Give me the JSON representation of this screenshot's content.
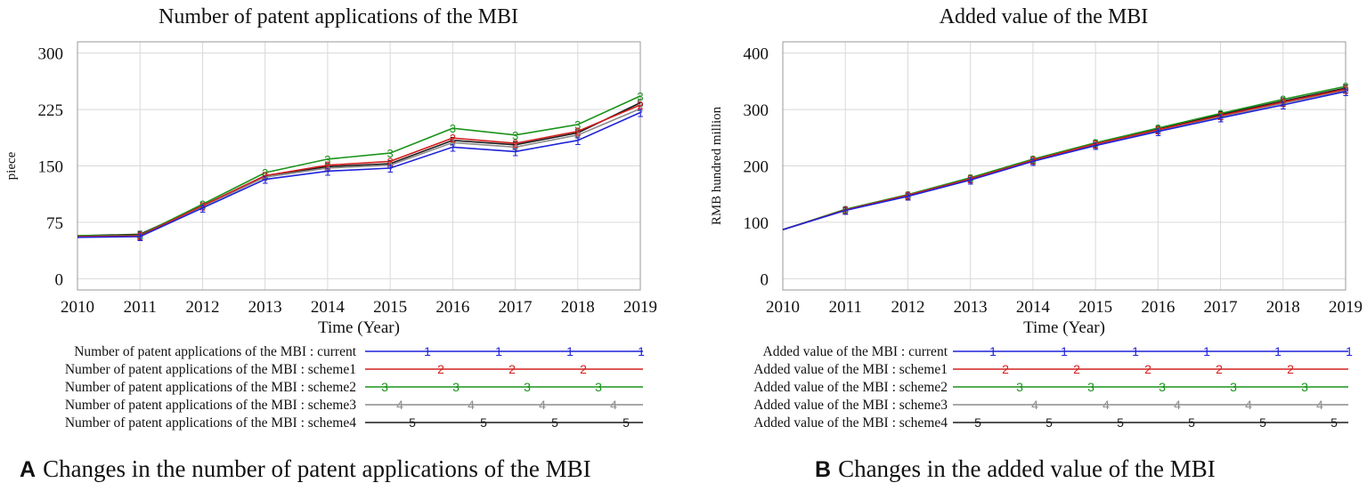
{
  "chart_data": [
    {
      "type": "line",
      "title": "Number of patent applications of the MBI",
      "xlabel": "Time (Year)",
      "ylabel": "piece",
      "x": [
        2010,
        2011,
        2012,
        2013,
        2014,
        2015,
        2016,
        2017,
        2018,
        2019
      ],
      "xticks": [
        "2010",
        "2011",
        "2012",
        "2013",
        "2014",
        "2015",
        "2016",
        "2017",
        "2018",
        "2019"
      ],
      "yticks": [
        "0",
        "75",
        "150",
        "225",
        "300"
      ],
      "ylim": [
        -15,
        315
      ],
      "grid": true,
      "legend_position": "below",
      "series": [
        {
          "name": "Number of patent applications of the MBI : current",
          "marker": "1",
          "color": "#1f22d8",
          "values": [
            55,
            56,
            94,
            132,
            143,
            147,
            175,
            169,
            184,
            221
          ]
        },
        {
          "name": "Number of patent applications of the MBI : scheme1",
          "marker": "2",
          "color": "#d42020",
          "values": [
            56,
            57,
            97,
            137,
            151,
            156,
            187,
            180,
            196,
            231
          ]
        },
        {
          "name": "Number of patent applications of the MBI : scheme2",
          "marker": "3",
          "color": "#1a931a",
          "values": [
            57,
            58,
            99,
            141,
            159,
            167,
            200,
            191,
            205,
            243
          ]
        },
        {
          "name": "Number of patent applications of the MBI : scheme3",
          "marker": "4",
          "color": "#8c8c8c",
          "values": [
            56,
            57,
            96,
            135,
            147,
            151,
            181,
            175,
            191,
            226
          ]
        },
        {
          "name": "Number of patent applications of the MBI : scheme4",
          "marker": "5",
          "color": "#1a1a1a",
          "values": [
            57,
            59,
            97,
            137,
            149,
            153,
            184,
            178,
            194,
            234
          ]
        }
      ]
    },
    {
      "type": "line",
      "title": "Added value of the MBI",
      "xlabel": "Time (Year)",
      "ylabel": "RMB hundred million",
      "x": [
        2010,
        2011,
        2012,
        2013,
        2014,
        2015,
        2016,
        2017,
        2018,
        2019
      ],
      "xticks": [
        "2010",
        "2011",
        "2012",
        "2013",
        "2014",
        "2015",
        "2016",
        "2017",
        "2018",
        "2019"
      ],
      "yticks": [
        "0",
        "100",
        "200",
        "300",
        "400"
      ],
      "ylim": [
        -20,
        420
      ],
      "grid": true,
      "legend_position": "below",
      "series": [
        {
          "name": "Added value of the MBI : current",
          "marker": "1",
          "color": "#1f22d8",
          "values": [
            87,
            121,
            146,
            175,
            208,
            236,
            261,
            285,
            308,
            332
          ]
        },
        {
          "name": "Added value of the MBI : scheme1",
          "marker": "2",
          "color": "#d42020",
          "values": [
            87,
            122,
            148,
            177,
            210,
            239,
            264,
            289,
            313,
            336
          ]
        },
        {
          "name": "Added value of the MBI : scheme2",
          "marker": "3",
          "color": "#1a931a",
          "values": [
            87,
            123,
            149,
            179,
            212,
            241,
            267,
            293,
            318,
            341
          ]
        },
        {
          "name": "Added value of the MBI : scheme3",
          "marker": "4",
          "color": "#8c8c8c",
          "values": [
            87,
            122,
            147,
            176,
            209,
            238,
            263,
            287,
            311,
            334
          ]
        },
        {
          "name": "Added value of the MBI : scheme4",
          "marker": "5",
          "color": "#1a1a1a",
          "values": [
            87,
            122,
            148,
            178,
            211,
            240,
            265,
            291,
            315,
            338
          ]
        }
      ]
    }
  ],
  "captions": {
    "a_letter": "A",
    "a_text": "Changes in the number of patent applications of the MBI",
    "b_letter": "B",
    "b_text": "Changes in the added value of the MBI"
  }
}
